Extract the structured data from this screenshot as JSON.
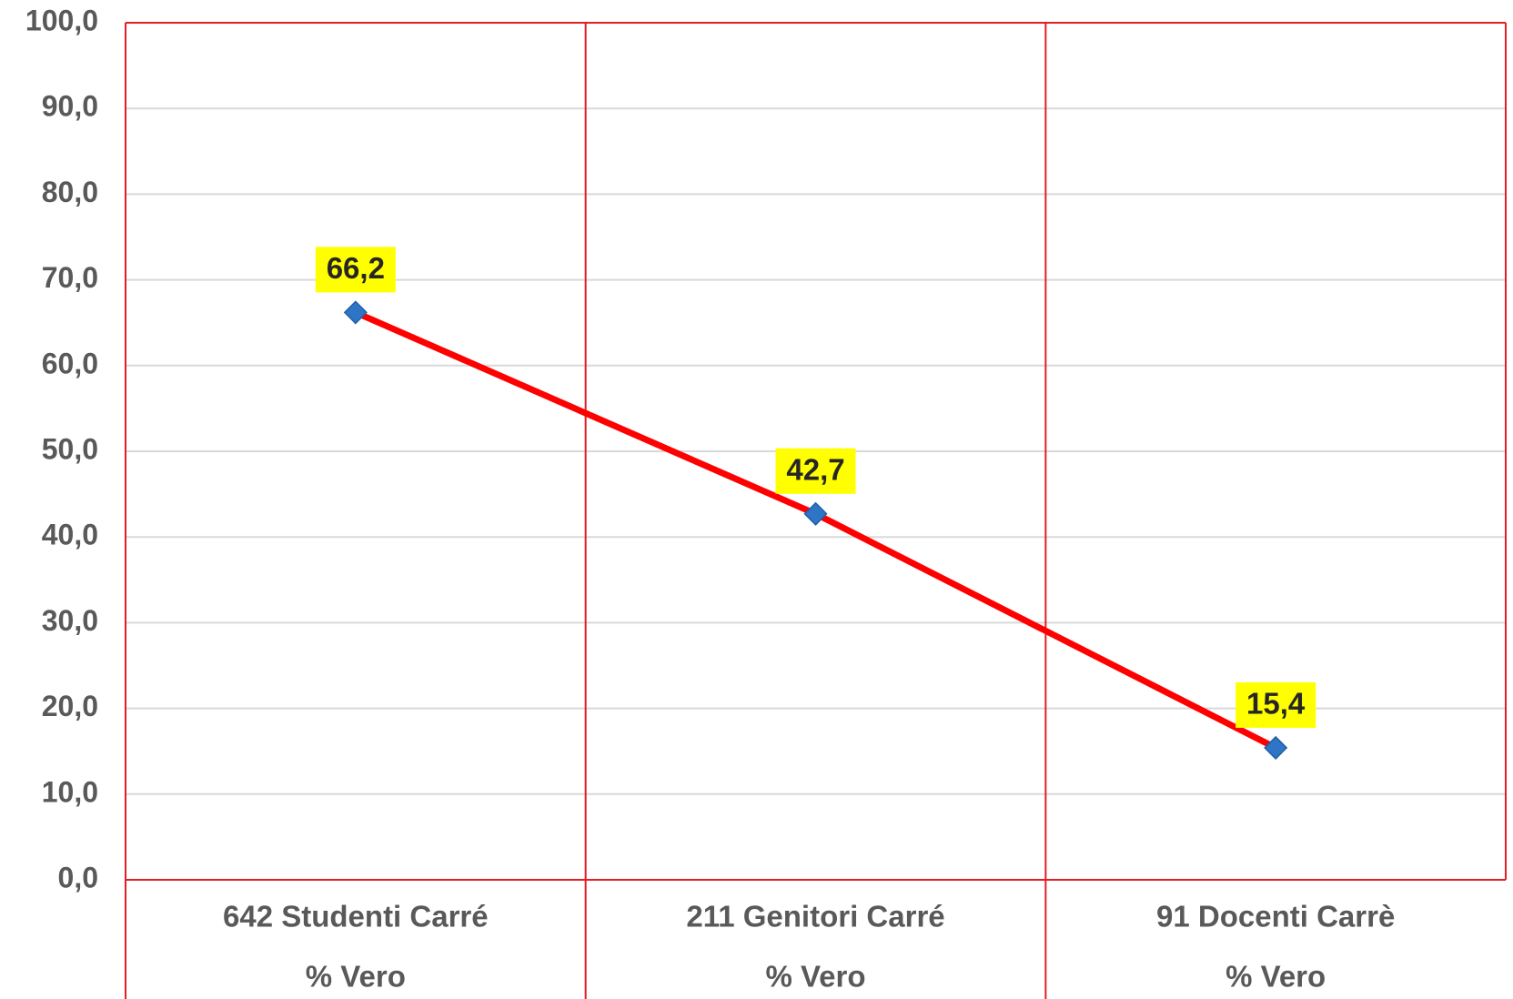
{
  "chart_data": {
    "type": "line",
    "categories": [
      [
        "642 Studenti Carré",
        "% Vero"
      ],
      [
        "211 Genitori Carré",
        "% Vero"
      ],
      [
        "91 Docenti Carrè",
        "% Vero"
      ]
    ],
    "values": [
      66.2,
      42.7,
      15.4
    ],
    "value_labels": [
      "66,2",
      "42,7",
      "15,4"
    ],
    "color": "#ff0000",
    "marker_color": "#2e75c6",
    "label_background": "#ffff00",
    "frame_color": "#e31e24",
    "ylim": [
      0,
      100
    ],
    "yticks": [
      {
        "value": 0,
        "label": "0,0"
      },
      {
        "value": 10,
        "label": "10,0"
      },
      {
        "value": 20,
        "label": "20,0"
      },
      {
        "value": 30,
        "label": "30,0"
      },
      {
        "value": 40,
        "label": "40,0"
      },
      {
        "value": 50,
        "label": "50,0"
      },
      {
        "value": 60,
        "label": "60,0"
      },
      {
        "value": 70,
        "label": "70,0"
      },
      {
        "value": 80,
        "label": "80,0"
      },
      {
        "value": 90,
        "label": "90,0"
      },
      {
        "value": 100,
        "label": "100,0"
      }
    ],
    "grid": true
  }
}
